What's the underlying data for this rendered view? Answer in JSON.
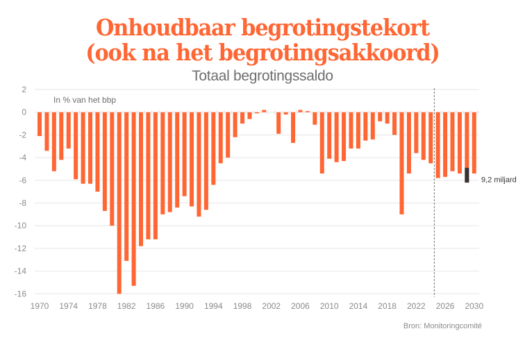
{
  "header": {
    "title_line1": "Onhoudbaar begrotingstekort",
    "title_line2": "(ook na het begrotingsakkoord)",
    "subtitle": "Totaal begrotingssaldo",
    "unit_label": "In % van het bbp"
  },
  "footer": {
    "source": "Bron: Monitoringcomité"
  },
  "colors": {
    "accent": "#ff6633",
    "highlight": "#333333",
    "grid": "#e6e6e6",
    "axis_text": "#8a8a8a"
  },
  "chart_data": {
    "type": "bar",
    "title": "Totaal begrotingssaldo",
    "ylabel": "In % van het bbp",
    "xlabel": "",
    "ylim": [
      -16,
      2
    ],
    "yticks": [
      2,
      0,
      -2,
      -4,
      -6,
      -8,
      -10,
      -12,
      -14,
      -16
    ],
    "xtick_labels": [
      "1970",
      "1974",
      "1978",
      "1982",
      "1986",
      "1990",
      "1994",
      "1998",
      "2002",
      "2006",
      "2010",
      "2014",
      "2018",
      "2022",
      "2026",
      "2030"
    ],
    "grid": true,
    "projection_start_marker": 2024.5,
    "categories": [
      1970,
      1971,
      1972,
      1973,
      1974,
      1975,
      1976,
      1977,
      1978,
      1979,
      1980,
      1981,
      1982,
      1983,
      1984,
      1985,
      1986,
      1987,
      1988,
      1989,
      1990,
      1991,
      1992,
      1993,
      1994,
      1995,
      1996,
      1997,
      1998,
      1999,
      2000,
      2001,
      2002,
      2003,
      2004,
      2005,
      2006,
      2007,
      2008,
      2009,
      2010,
      2011,
      2012,
      2013,
      2014,
      2015,
      2016,
      2017,
      2018,
      2019,
      2020,
      2021,
      2022,
      2023,
      2024,
      2025,
      2026,
      2027,
      2028,
      2029,
      2030
    ],
    "values": [
      -2.1,
      -3.4,
      -5.2,
      -4.2,
      -3.2,
      -5.9,
      -6.3,
      -6.3,
      -7.0,
      -8.7,
      -10.0,
      -16.0,
      -13.1,
      -15.3,
      -11.8,
      -11.2,
      -11.2,
      -9.0,
      -8.8,
      -8.4,
      -7.4,
      -8.3,
      -9.2,
      -8.6,
      -6.4,
      -4.5,
      -4.0,
      -2.2,
      -1.0,
      -0.6,
      -0.1,
      0.2,
      0.0,
      -1.9,
      -0.2,
      -2.7,
      0.2,
      0.1,
      -1.1,
      -5.4,
      -4.1,
      -4.4,
      -4.3,
      -3.2,
      -3.2,
      -2.5,
      -2.4,
      -0.8,
      -1.0,
      -2.0,
      -9.0,
      -5.4,
      -3.6,
      -4.2,
      -4.5,
      -5.8,
      -5.7,
      -5.2,
      -5.4,
      -6.2,
      -5.4
    ],
    "highlight": {
      "year": 2029,
      "from": -4.9,
      "to": -6.2,
      "label": "9,2 miljard"
    }
  }
}
